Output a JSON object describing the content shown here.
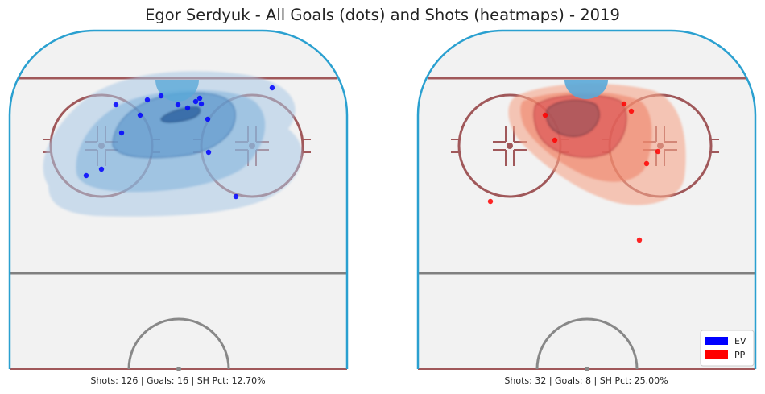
{
  "title": "Egor Serdyuk - All Goals (dots) and Shots (heatmaps) - 2019",
  "colors": {
    "EV": "#0000ff",
    "PP": "#ff0000",
    "ice": "#f2f2f2",
    "boards": "#2aa0d0",
    "goal_line": "#a0585a",
    "blue_line": "#808080",
    "ev_heat": "#3a8ac8",
    "pp_heat": "#ee6a50",
    "crease": "#4fb0e0"
  },
  "legend": [
    {
      "label": "EV",
      "color": "#0000ff"
    },
    {
      "label": "PP",
      "color": "#ff0000"
    }
  ],
  "chart_data": [
    {
      "type": "scatter",
      "series": [
        {
          "name": "EV",
          "values": [
            [
              144,
              130
            ],
            [
              183,
              124
            ],
            [
              200,
              119
            ],
            [
              221,
              130
            ],
            [
              233,
              134
            ],
            [
              243,
              126
            ],
            [
              250,
              129
            ],
            [
              174,
              143
            ],
            [
              151,
              165
            ],
            [
              258,
              148
            ],
            [
              259,
              189
            ],
            [
              126,
              210
            ],
            [
              107,
              218
            ],
            [
              293,
              244
            ],
            [
              338,
              109
            ],
            [
              248,
              122
            ]
          ]
        }
      ],
      "caption": "Shots: 126 | Goals: 16 | SH Pct: 12.70%"
    },
    {
      "type": "scatter",
      "series": [
        {
          "name": "PP",
          "values": [
            [
              677,
              143
            ],
            [
              689,
              174
            ],
            [
              775,
              129
            ],
            [
              784,
              138
            ],
            [
              803,
              203
            ],
            [
              817,
              188
            ],
            [
              609,
              250
            ],
            [
              794,
              298
            ]
          ]
        }
      ],
      "caption": "Shots: 32 | Goals: 8 | SH Pct: 25.00%"
    }
  ]
}
